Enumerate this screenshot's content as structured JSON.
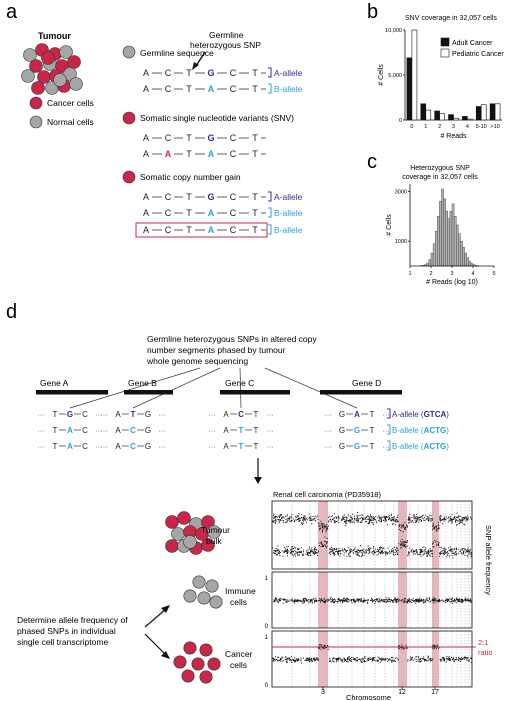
{
  "panel_a": {
    "letter": "a",
    "tumour_label": "Tumour",
    "legend_cancer": "Cancer cells",
    "legend_normal": "Normal cells",
    "germline_snp_label": [
      "Germline",
      "heterozygous SNP"
    ],
    "germline_sequence_title": "Germline sequence",
    "snv_title": "Somatic single nucleotide variants (SNV)",
    "cng_title": "Somatic copy number gain",
    "a_allele": "A-allele",
    "b_allele": "B-allele",
    "seq_germline_a": [
      "A",
      "C",
      "T",
      "G",
      "C",
      "T"
    ],
    "seq_germline_b": [
      "A",
      "C",
      "T",
      "A",
      "C",
      "T"
    ],
    "seq_snv_a": [
      "A",
      "C",
      "T",
      "G",
      "C",
      "T"
    ],
    "seq_snv_b": [
      "A",
      "A",
      "T",
      "A",
      "C",
      "T"
    ],
    "colors": {
      "cancer": "#c8274a",
      "normal": "#a6a6a6",
      "a_allele": "#2c2f8f",
      "b_allele": "#29a3d6",
      "snv": "#c8274a"
    }
  },
  "panel_b": {
    "letter": "b",
    "chart_data": {
      "type": "bar",
      "title": "SNV coverage in 32,057 cells",
      "xlabel": "# Reads",
      "ylabel": "# Cells",
      "categories": [
        "0",
        "1",
        "2",
        "3",
        "4",
        "5-10",
        ">10"
      ],
      "y_ticks": [
        "10,000",
        "5,000",
        "0"
      ],
      "ylim": [
        0,
        10000
      ],
      "legend_placement": "top-right",
      "series": [
        {
          "name": "Adult Cancer",
          "color": "#111111",
          "values": [
            6900,
            1800,
            1000,
            600,
            400,
            1500,
            1800
          ]
        },
        {
          "name": "Pediatric Cancer",
          "color": "#ffffff",
          "values": [
            10000,
            1100,
            700,
            200,
            100,
            1700,
            1800
          ]
        }
      ]
    }
  },
  "panel_c": {
    "letter": "c",
    "chart_data": {
      "type": "bar",
      "title": "Heterozygous SNP coverage in 32,057 cells",
      "title_lines": [
        "Heterozygous SNP",
        "coverage in 32,057 cells"
      ],
      "xlabel": "# Reads (log 10)",
      "ylabel": "# Cells",
      "x_ticks": [
        "1",
        "2",
        "3",
        "4",
        "5"
      ],
      "y_ticks": [
        "3000",
        "1000"
      ],
      "xlim": [
        1,
        5
      ],
      "ylim": [
        0,
        3300
      ],
      "bin_start": 1.5,
      "bin_width": 0.1,
      "values": [
        15,
        30,
        60,
        120,
        260,
        520,
        900,
        1400,
        2000,
        2600,
        3100,
        2700,
        2200,
        1900,
        2200,
        2500,
        2000,
        1650,
        1300,
        1000,
        750,
        520,
        330,
        180,
        100,
        50,
        25,
        10
      ]
    }
  },
  "panel_d": {
    "letter": "d",
    "header_lines": [
      "Germline heterozygous SNPs in altered copy",
      "number segments phased by tumour",
      "whole genome sequencing"
    ],
    "genes": [
      {
        "name": "Gene A",
        "seq": [
          "T",
          "G",
          "C"
        ],
        "b1": [
          "T",
          "A",
          "C"
        ],
        "b2": [
          "T",
          "A",
          "C"
        ]
      },
      {
        "name": "Gene B",
        "seq": [
          "A",
          "T",
          "G"
        ],
        "b1": [
          "A",
          "C",
          "G"
        ],
        "b2": [
          "A",
          "C",
          "G"
        ]
      },
      {
        "name": "Gene C",
        "seq": [
          "A",
          "C",
          "T"
        ],
        "b1": [
          "A",
          "T",
          "T"
        ],
        "b2": [
          "A",
          "T",
          "T"
        ]
      },
      {
        "name": "Gene D",
        "seq": [
          "G",
          "A",
          "T"
        ],
        "b1": [
          "G",
          "G",
          "T"
        ],
        "b2": [
          "G",
          "G",
          "T"
        ]
      }
    ],
    "allele_labels": [
      {
        "prefix": "A-allele (",
        "code": "GTCA",
        "suffix": ")"
      },
      {
        "prefix": "B-allele (",
        "code": "ACTG",
        "suffix": ")"
      },
      {
        "prefix": "B-allele (",
        "code": "ACTG",
        "suffix": ")"
      }
    ],
    "rcc_title": "Renal cell carcinoma (PD35918)",
    "tumour_bulk": [
      "Tumour",
      "bulk"
    ],
    "immune_cells": [
      "Immune",
      "cells"
    ],
    "cancer_cells": [
      "Cancer",
      "cells"
    ],
    "determine_lines": [
      "Determine allele frequency of",
      "phased SNPs in individual",
      "single cell transcriptome"
    ],
    "y_axis_label": "SNP allele frequency",
    "ratio_lines": [
      "2:1",
      "ratio"
    ],
    "chromosome_label": "Chromosome",
    "chromosome_ticks": [
      "3",
      "12",
      "17"
    ],
    "track_y_ticks": [
      "1",
      "0"
    ]
  }
}
